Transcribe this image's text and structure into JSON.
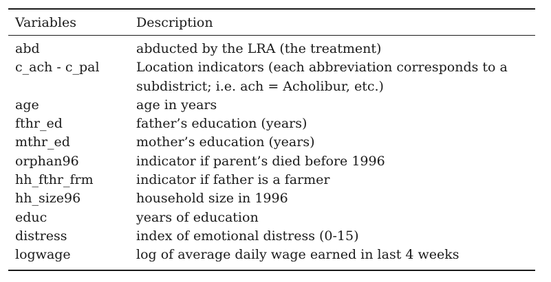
{
  "table": {
    "headers": {
      "variable": "Variables",
      "description": "Description"
    },
    "rows": [
      {
        "variable": "abd",
        "description": "abducted by the LRA (the treatment)"
      },
      {
        "variable": "c_ach - c_pal",
        "description": "Location indicators (each abbreviation corresponds to a subdistrict; i.e. ach = Acholibur, etc.)"
      },
      {
        "variable": "age",
        "description": "age in years"
      },
      {
        "variable": "fthr_ed",
        "description": "father’s education (years)"
      },
      {
        "variable": "mthr_ed",
        "description": "mother’s education (years)"
      },
      {
        "variable": "orphan96",
        "description": "indicator if parent’s died before 1996"
      },
      {
        "variable": "hh_fthr_frm",
        "description": "indicator if father is a farmer"
      },
      {
        "variable": "hh_size96",
        "description": "household size in 1996"
      },
      {
        "variable": "educ",
        "description": "years of education"
      },
      {
        "variable": "distress",
        "description": "index of emotional distress (0-15)"
      },
      {
        "variable": "logwage",
        "description": "log of average daily wage earned in last 4 weeks"
      }
    ]
  }
}
